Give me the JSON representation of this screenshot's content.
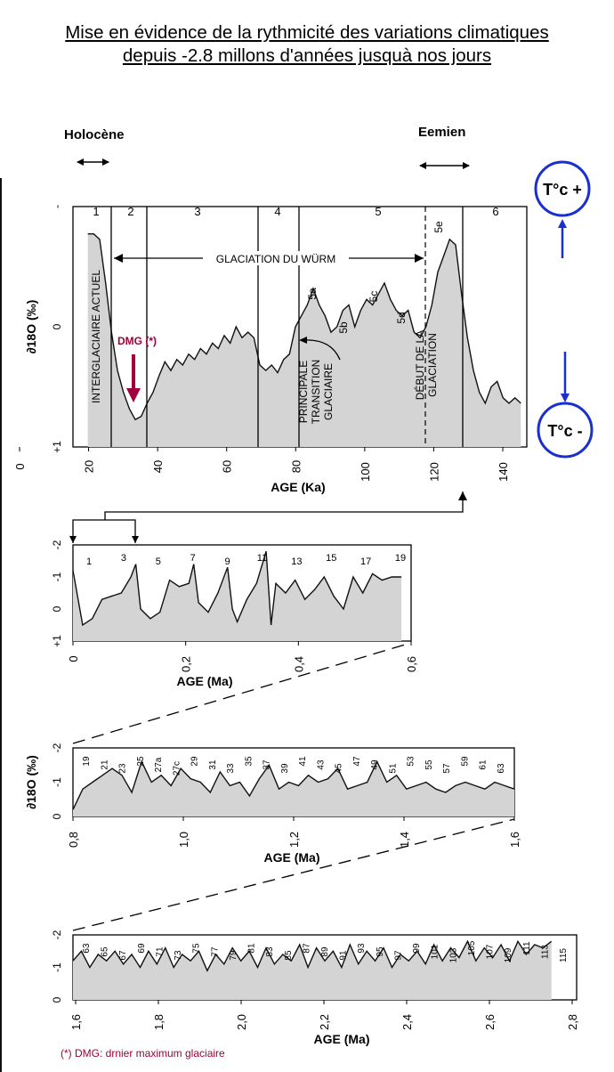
{
  "header": {
    "title_line1": "Mise en évidence de la rythmicité des variations climatiques",
    "title_line2": "depuis -2.8 millons d'années jusquà nos jours"
  },
  "labels": {
    "holocene": "Holocène",
    "eemien": "Eemien",
    "t_plus": "T°c +",
    "t_minus": "T°c -",
    "footnote": "(*) DMG: drnier maximum glaciaire"
  },
  "colors": {
    "accent": "#1a2fd0",
    "marker": "#a0003c",
    "fill": "#d4d4d4"
  },
  "chart_data": [
    {
      "type": "area",
      "xlabel": "AGE (Ka)",
      "ylabel": "∂18O (‰)",
      "xlim": [
        -3,
        150
      ],
      "ylim": [
        1,
        -1.2
      ],
      "xticks": [
        "0",
        "20",
        "40",
        "60",
        "80",
        "100",
        "120",
        "140"
      ],
      "yticks": [
        "+1",
        "0",
        "-"
      ],
      "stages": [
        "1",
        "2",
        "3",
        "4",
        "5",
        "6"
      ],
      "substages": [
        "5a",
        "5b",
        "5c",
        "5d",
        "5e"
      ],
      "annotations": [
        "GLACIATION DU WÜRM",
        "INTERGLACIAIRE ACTUEL",
        "PRINCIPALE TRANSITION GLACIAIRE",
        "DÉBUT DE LA GLACIATION",
        "DMG (*)"
      ],
      "x": [
        2,
        4,
        6,
        8,
        10,
        12,
        14,
        16,
        18,
        20,
        22,
        24,
        26,
        28,
        30,
        32,
        34,
        36,
        38,
        40,
        42,
        44,
        46,
        48,
        50,
        52,
        54,
        56,
        58,
        60,
        62,
        64,
        66,
        68,
        70,
        72,
        74,
        76,
        78,
        80,
        82,
        84,
        86,
        88,
        90,
        92,
        94,
        96,
        98,
        100,
        102,
        104,
        106,
        108,
        110,
        112,
        114,
        116,
        118,
        120,
        122,
        124,
        126,
        128,
        130,
        132,
        134,
        136,
        138,
        140,
        142,
        144,
        146,
        148
      ],
      "y": [
        -0.95,
        -0.95,
        -0.9,
        -0.5,
        -0.05,
        0.3,
        0.5,
        0.65,
        0.75,
        0.72,
        0.6,
        0.5,
        0.35,
        0.22,
        0.3,
        0.2,
        0.25,
        0.15,
        0.2,
        0.1,
        0.15,
        0.05,
        0.1,
        -0.02,
        0.05,
        -0.1,
        0.0,
        -0.05,
        0.0,
        0.25,
        0.3,
        0.25,
        0.32,
        0.2,
        0.15,
        -0.1,
        -0.2,
        -0.3,
        -0.45,
        -0.3,
        -0.2,
        -0.05,
        -0.1,
        -0.25,
        -0.3,
        -0.1,
        -0.25,
        -0.35,
        -0.3,
        -0.4,
        -0.5,
        -0.35,
        -0.25,
        -0.2,
        -0.25,
        -0.05,
        0.0,
        -0.1,
        -0.3,
        -0.6,
        -0.75,
        -0.9,
        -0.85,
        -0.4,
        0.0,
        0.3,
        0.5,
        0.6,
        0.45,
        0.4,
        0.55,
        0.6,
        0.55,
        0.6
      ]
    },
    {
      "type": "area",
      "xlabel": "AGE (Ma)",
      "xlim": [
        0,
        0.7
      ],
      "ylim": [
        1,
        -2
      ],
      "xticks": [
        "0",
        "0,2",
        "0,4",
        "0,6"
      ],
      "yticks": [
        "+1",
        "0",
        "-1",
        "-2"
      ],
      "stages": [
        "1",
        "3",
        "5",
        "7",
        "9",
        "11",
        "13",
        "15",
        "17",
        "19"
      ],
      "x": [
        0,
        0.02,
        0.04,
        0.06,
        0.08,
        0.1,
        0.12,
        0.13,
        0.14,
        0.16,
        0.18,
        0.2,
        0.22,
        0.24,
        0.25,
        0.26,
        0.28,
        0.3,
        0.32,
        0.33,
        0.34,
        0.36,
        0.38,
        0.4,
        0.41,
        0.42,
        0.44,
        0.46,
        0.48,
        0.5,
        0.52,
        0.54,
        0.56,
        0.58,
        0.6,
        0.62,
        0.64,
        0.66,
        0.68
      ],
      "y": [
        -1.2,
        0.5,
        0.3,
        -0.3,
        -0.4,
        -0.5,
        -1.0,
        -1.4,
        0.0,
        0.3,
        0.1,
        -0.9,
        -0.7,
        -0.8,
        -1.4,
        -0.2,
        0.1,
        -0.5,
        -1.3,
        0.0,
        0.4,
        -0.3,
        -0.8,
        -1.8,
        0.5,
        -0.8,
        -0.5,
        -0.9,
        -0.3,
        -0.6,
        -1.0,
        -0.4,
        0.0,
        -1.0,
        -0.5,
        -1.1,
        -0.9,
        -1.0,
        -1.0
      ]
    },
    {
      "type": "area",
      "xlabel": "AGE (Ma)",
      "ylabel": "∂18O (‰)",
      "xlim": [
        0.7,
        1.6
      ],
      "ylim": [
        0,
        -2
      ],
      "xticks": [
        "0,8",
        "1,0",
        "1,2",
        "1,4",
        "1,6"
      ],
      "yticks": [
        "0",
        "-1",
        "-2"
      ],
      "stages": [
        "19",
        "21",
        "23",
        "25",
        "27a",
        "27c",
        "29",
        "31",
        "33",
        "35",
        "37",
        "39",
        "41",
        "43",
        "45",
        "47",
        "49",
        "51",
        "53",
        "55",
        "57",
        "59",
        "61",
        "63"
      ],
      "x": [
        0.7,
        0.72,
        0.74,
        0.76,
        0.78,
        0.8,
        0.82,
        0.84,
        0.86,
        0.88,
        0.9,
        0.92,
        0.94,
        0.96,
        0.98,
        1.0,
        1.02,
        1.04,
        1.06,
        1.08,
        1.1,
        1.12,
        1.14,
        1.16,
        1.18,
        1.2,
        1.22,
        1.24,
        1.26,
        1.28,
        1.3,
        1.32,
        1.34,
        1.36,
        1.38,
        1.4,
        1.42,
        1.44,
        1.46,
        1.48,
        1.5,
        1.52,
        1.54,
        1.56,
        1.58,
        1.6
      ],
      "y": [
        -0.2,
        -0.8,
        -1.0,
        -1.2,
        -1.4,
        -1.2,
        -0.7,
        -1.6,
        -1.0,
        -1.2,
        -0.9,
        -1.4,
        -1.1,
        -1.0,
        -0.7,
        -1.3,
        -0.9,
        -1.0,
        -0.6,
        -1.1,
        -1.5,
        -0.8,
        -1.0,
        -0.9,
        -1.2,
        -1.0,
        -1.1,
        -1.4,
        -0.8,
        -0.9,
        -1.0,
        -1.6,
        -1.0,
        -1.2,
        -0.8,
        -0.9,
        -1.0,
        -0.8,
        -0.7,
        -0.9,
        -1.0,
        -0.9,
        -0.8,
        -1.0,
        -0.9,
        -0.8
      ]
    },
    {
      "type": "area",
      "xlabel": "AGE (Ma)",
      "xlim": [
        1.6,
        2.8
      ],
      "ylim": [
        0,
        -2
      ],
      "xticks": [
        "1,6",
        "1,8",
        "2,0",
        "2,2",
        "2,4",
        "2,6",
        "2,8"
      ],
      "yticks": [
        "0",
        "-1",
        "-2"
      ],
      "stages": [
        "63",
        "65",
        "67",
        "69",
        "71",
        "73",
        "75",
        "77",
        "79",
        "81",
        "83",
        "85",
        "87",
        "89",
        "91",
        "93",
        "95",
        "97",
        "99",
        "101",
        "103",
        "105",
        "107",
        "109",
        "111",
        "113",
        "115"
      ],
      "x": [
        1.6,
        1.62,
        1.64,
        1.66,
        1.68,
        1.7,
        1.72,
        1.74,
        1.76,
        1.78,
        1.8,
        1.82,
        1.84,
        1.86,
        1.88,
        1.9,
        1.92,
        1.94,
        1.96,
        1.98,
        2.0,
        2.02,
        2.04,
        2.06,
        2.08,
        2.1,
        2.12,
        2.14,
        2.16,
        2.18,
        2.2,
        2.22,
        2.24,
        2.26,
        2.28,
        2.3,
        2.32,
        2.34,
        2.36,
        2.38,
        2.4,
        2.42,
        2.44,
        2.46,
        2.48,
        2.5,
        2.52,
        2.54,
        2.56,
        2.58,
        2.6,
        2.62,
        2.64,
        2.66,
        2.68,
        2.7,
        2.72,
        2.74
      ],
      "y": [
        -1.2,
        -1.5,
        -1.0,
        -1.4,
        -1.2,
        -1.5,
        -1.1,
        -1.4,
        -1.0,
        -1.5,
        -1.1,
        -1.6,
        -1.0,
        -1.4,
        -1.2,
        -1.5,
        -0.9,
        -1.4,
        -1.1,
        -1.6,
        -1.2,
        -1.5,
        -1.0,
        -1.6,
        -1.1,
        -1.4,
        -1.2,
        -1.7,
        -1.0,
        -1.6,
        -1.2,
        -1.5,
        -1.0,
        -1.7,
        -1.1,
        -1.5,
        -1.2,
        -1.6,
        -1.0,
        -1.4,
        -1.2,
        -1.5,
        -1.1,
        -1.7,
        -1.2,
        -1.6,
        -1.3,
        -1.8,
        -1.2,
        -1.6,
        -1.3,
        -1.7,
        -1.2,
        -1.8,
        -1.4,
        -1.7,
        -1.6,
        -1.8
      ]
    }
  ]
}
